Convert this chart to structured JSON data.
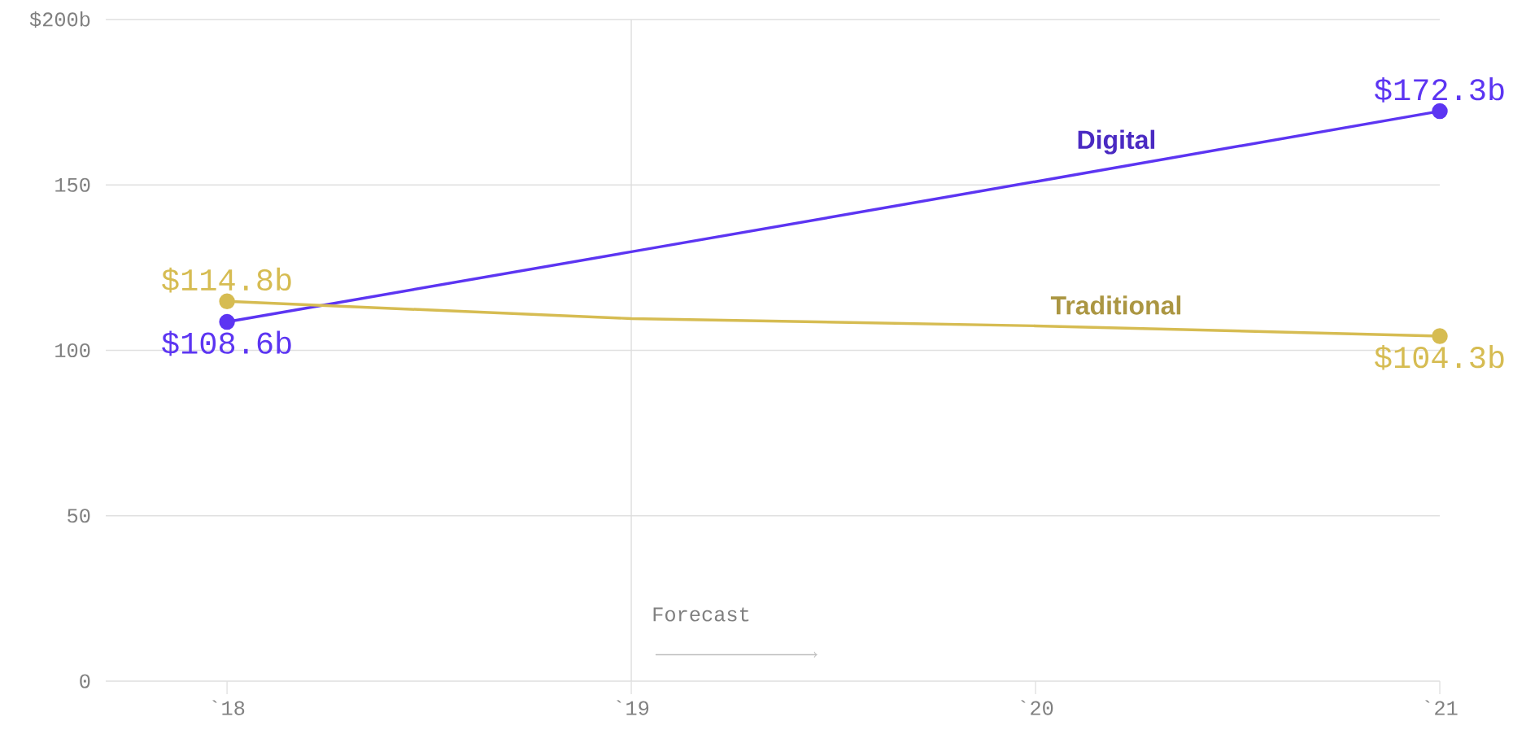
{
  "chart_data": {
    "type": "line",
    "categories": [
      "`18",
      "`19",
      "`20",
      "`21"
    ],
    "series": [
      {
        "name": "Digital",
        "color": "#5c35f2",
        "values": [
          108.6,
          129.8,
          151.0,
          172.3
        ],
        "value_labels": [
          "$108.6b",
          null,
          null,
          "$172.3b"
        ]
      },
      {
        "name": "Traditional",
        "color": "#d6bc52",
        "values": [
          114.8,
          109.6,
          107.4,
          104.3
        ],
        "value_labels": [
          "$114.8b",
          null,
          null,
          "$104.3b"
        ]
      }
    ],
    "ylim": [
      0,
      200
    ],
    "yticks": [
      0,
      50,
      100,
      150,
      {
        "value": 200,
        "label": "$200b"
      }
    ],
    "grid": "y",
    "marker": "circle",
    "line_style": "solid",
    "ref_lines": [
      {
        "axis": "x",
        "value": "`19",
        "label": "Forecast",
        "color": "#dddddd"
      }
    ]
  }
}
